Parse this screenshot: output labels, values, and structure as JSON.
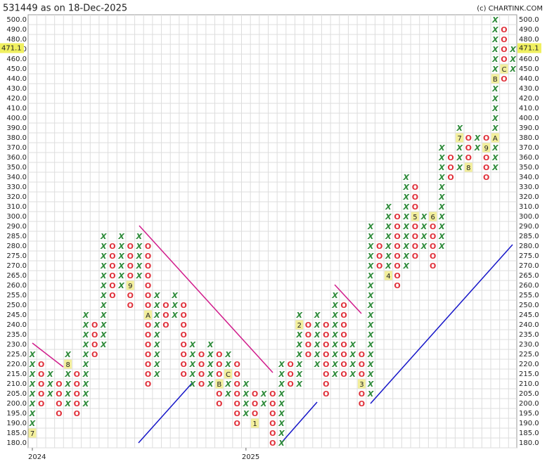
{
  "chart_data": {
    "type": "point-and-figure",
    "title": "531449 as on 18-Dec-2025",
    "source": "(c) CHARTINK.COM",
    "last_price": 471.1,
    "colors": {
      "X": "#2e8b3a",
      "O": "#e0303a",
      "marker_bg": "#f3ef9c",
      "price_bg": "#f0f060"
    },
    "grid": true,
    "yticks": [
      {
        "value": 180,
        "label": "180.0"
      },
      {
        "value": 185,
        "label": "185.0"
      },
      {
        "value": 190,
        "label": "190.0"
      },
      {
        "value": 195,
        "label": "195.0"
      },
      {
        "value": 200,
        "label": "200.0"
      },
      {
        "value": 205,
        "label": "205.0"
      },
      {
        "value": 210,
        "label": "210.0"
      },
      {
        "value": 215,
        "label": "215.0"
      },
      {
        "value": 220,
        "label": "220.0"
      },
      {
        "value": 225,
        "label": "225.0"
      },
      {
        "value": 230,
        "label": "230.0"
      },
      {
        "value": 235,
        "label": "235.0"
      },
      {
        "value": 240,
        "label": "240.0"
      },
      {
        "value": 245,
        "label": "245.0"
      },
      {
        "value": 250,
        "label": "250.0"
      },
      {
        "value": 255,
        "label": "255.0"
      },
      {
        "value": 260,
        "label": "260.0"
      },
      {
        "value": 265,
        "label": "265.0"
      },
      {
        "value": 270,
        "label": "270.0"
      },
      {
        "value": 275,
        "label": "275.0"
      },
      {
        "value": 280,
        "label": "280.0"
      },
      {
        "value": 285,
        "label": "285.0"
      },
      {
        "value": 290,
        "label": "290.0"
      },
      {
        "value": 300,
        "label": "300.0"
      },
      {
        "value": 310,
        "label": "310.0"
      },
      {
        "value": 320,
        "label": "320.0"
      },
      {
        "value": 330,
        "label": "330.0"
      },
      {
        "value": 340,
        "label": "340.0"
      },
      {
        "value": 350,
        "label": "350.0"
      },
      {
        "value": 360,
        "label": "360.0"
      },
      {
        "value": 370,
        "label": "370.0"
      },
      {
        "value": 380,
        "label": "380.0"
      },
      {
        "value": 390,
        "label": "390.0"
      },
      {
        "value": 400,
        "label": "400.0"
      },
      {
        "value": 410,
        "label": "410.0"
      },
      {
        "value": 420,
        "label": "420.0"
      },
      {
        "value": 430,
        "label": "430.0"
      },
      {
        "value": 440,
        "label": "440.0"
      },
      {
        "value": 450,
        "label": "450.0"
      },
      {
        "value": 460,
        "label": "460.0"
      },
      {
        "value": 470,
        "label": "470.0"
      },
      {
        "value": 480,
        "label": "480.0"
      },
      {
        "value": 490,
        "label": "490.0"
      },
      {
        "value": 500,
        "label": "500.0"
      }
    ],
    "x_labels": [
      {
        "label": "2024",
        "column": 0
      },
      {
        "label": "2025",
        "column": 24
      }
    ],
    "columns": [
      {
        "type": "X",
        "low": 185,
        "high": 225,
        "marks": [
          {
            "level": 185,
            "label": "7"
          }
        ]
      },
      {
        "type": "O",
        "low": 200,
        "high": 220,
        "marks": []
      },
      {
        "type": "X",
        "low": 205,
        "high": 215,
        "marks": []
      },
      {
        "type": "O",
        "low": 195,
        "high": 210,
        "marks": []
      },
      {
        "type": "X",
        "low": 200,
        "high": 225,
        "marks": [
          {
            "level": 220,
            "label": "8"
          }
        ]
      },
      {
        "type": "O",
        "low": 195,
        "high": 215,
        "marks": []
      },
      {
        "type": "X",
        "low": 200,
        "high": 245,
        "marks": []
      },
      {
        "type": "O",
        "low": 225,
        "high": 240,
        "marks": []
      },
      {
        "type": "X",
        "low": 230,
        "high": 285,
        "marks": []
      },
      {
        "type": "O",
        "low": 255,
        "high": 280,
        "marks": []
      },
      {
        "type": "X",
        "low": 260,
        "high": 285,
        "marks": []
      },
      {
        "type": "O",
        "low": 250,
        "high": 280,
        "marks": [
          {
            "level": 260,
            "label": "9"
          }
        ]
      },
      {
        "type": "X",
        "low": 265,
        "high": 285,
        "marks": []
      },
      {
        "type": "O",
        "low": 210,
        "high": 280,
        "marks": [
          {
            "level": 245,
            "label": "A"
          }
        ]
      },
      {
        "type": "X",
        "low": 215,
        "high": 255,
        "marks": []
      },
      {
        "type": "O",
        "low": 240,
        "high": 250,
        "marks": []
      },
      {
        "type": "X",
        "low": 245,
        "high": 255,
        "marks": []
      },
      {
        "type": "O",
        "low": 215,
        "high": 250,
        "marks": []
      },
      {
        "type": "X",
        "low": 210,
        "high": 230,
        "marks": []
      },
      {
        "type": "O",
        "low": 210,
        "high": 225,
        "marks": []
      },
      {
        "type": "X",
        "low": 210,
        "high": 230,
        "marks": []
      },
      {
        "type": "O",
        "low": 200,
        "high": 225,
        "marks": [
          {
            "level": 210,
            "label": "B"
          }
        ]
      },
      {
        "type": "X",
        "low": 205,
        "high": 225,
        "marks": [
          {
            "level": 215,
            "label": "C"
          }
        ]
      },
      {
        "type": "O",
        "low": 190,
        "high": 220,
        "marks": []
      },
      {
        "type": "X",
        "low": 195,
        "high": 210,
        "marks": []
      },
      {
        "type": "O",
        "low": 190,
        "high": 205,
        "marks": [
          {
            "level": 190,
            "label": "1"
          }
        ]
      },
      {
        "type": "X",
        "low": 200,
        "high": 205,
        "marks": []
      },
      {
        "type": "O",
        "low": 180,
        "high": 205,
        "marks": []
      },
      {
        "type": "X",
        "low": 180,
        "high": 220,
        "marks": []
      },
      {
        "type": "O",
        "low": 210,
        "high": 220,
        "marks": []
      },
      {
        "type": "X",
        "low": 210,
        "high": 245,
        "marks": [
          {
            "level": 240,
            "label": "2"
          }
        ]
      },
      {
        "type": "O",
        "low": 225,
        "high": 240,
        "marks": []
      },
      {
        "type": "X",
        "low": 220,
        "high": 245,
        "marks": []
      },
      {
        "type": "O",
        "low": 205,
        "high": 240,
        "marks": []
      },
      {
        "type": "X",
        "low": 215,
        "high": 255,
        "marks": []
      },
      {
        "type": "O",
        "low": 215,
        "high": 250,
        "marks": []
      },
      {
        "type": "X",
        "low": 215,
        "high": 230,
        "marks": []
      },
      {
        "type": "O",
        "low": 200,
        "high": 225,
        "marks": [
          {
            "level": 210,
            "label": "3"
          }
        ]
      },
      {
        "type": "X",
        "low": 205,
        "high": 290,
        "marks": []
      },
      {
        "type": "O",
        "low": 270,
        "high": 280,
        "marks": []
      },
      {
        "type": "X",
        "low": 265,
        "high": 310,
        "marks": [
          {
            "level": 265,
            "label": "4"
          }
        ]
      },
      {
        "type": "O",
        "low": 260,
        "high": 300,
        "marks": []
      },
      {
        "type": "X",
        "low": 270,
        "high": 340,
        "marks": []
      },
      {
        "type": "O",
        "low": 275,
        "high": 330,
        "marks": [
          {
            "level": 300,
            "label": "5"
          }
        ]
      },
      {
        "type": "X",
        "low": 280,
        "high": 300,
        "marks": []
      },
      {
        "type": "O",
        "low": 270,
        "high": 300,
        "marks": [
          {
            "level": 300,
            "label": "6"
          }
        ]
      },
      {
        "type": "X",
        "low": 280,
        "high": 370,
        "marks": []
      },
      {
        "type": "O",
        "low": 340,
        "high": 360,
        "marks": []
      },
      {
        "type": "X",
        "low": 350,
        "high": 390,
        "marks": [
          {
            "level": 380,
            "label": "7"
          }
        ]
      },
      {
        "type": "O",
        "low": 350,
        "high": 380,
        "marks": [
          {
            "level": 350,
            "label": "8"
          }
        ]
      },
      {
        "type": "X",
        "low": 370,
        "high": 380,
        "marks": []
      },
      {
        "type": "O",
        "low": 340,
        "high": 380,
        "marks": [
          {
            "level": 370,
            "label": "9"
          }
        ]
      },
      {
        "type": "X",
        "low": 350,
        "high": 500,
        "marks": [
          {
            "level": 380,
            "label": "A"
          },
          {
            "level": 440,
            "label": "B"
          }
        ]
      },
      {
        "type": "O",
        "low": 440,
        "high": 490,
        "marks": [
          {
            "level": 450,
            "label": "C"
          }
        ]
      },
      {
        "type": "X",
        "low": 450,
        "high": 470,
        "marks": []
      }
    ]
  }
}
